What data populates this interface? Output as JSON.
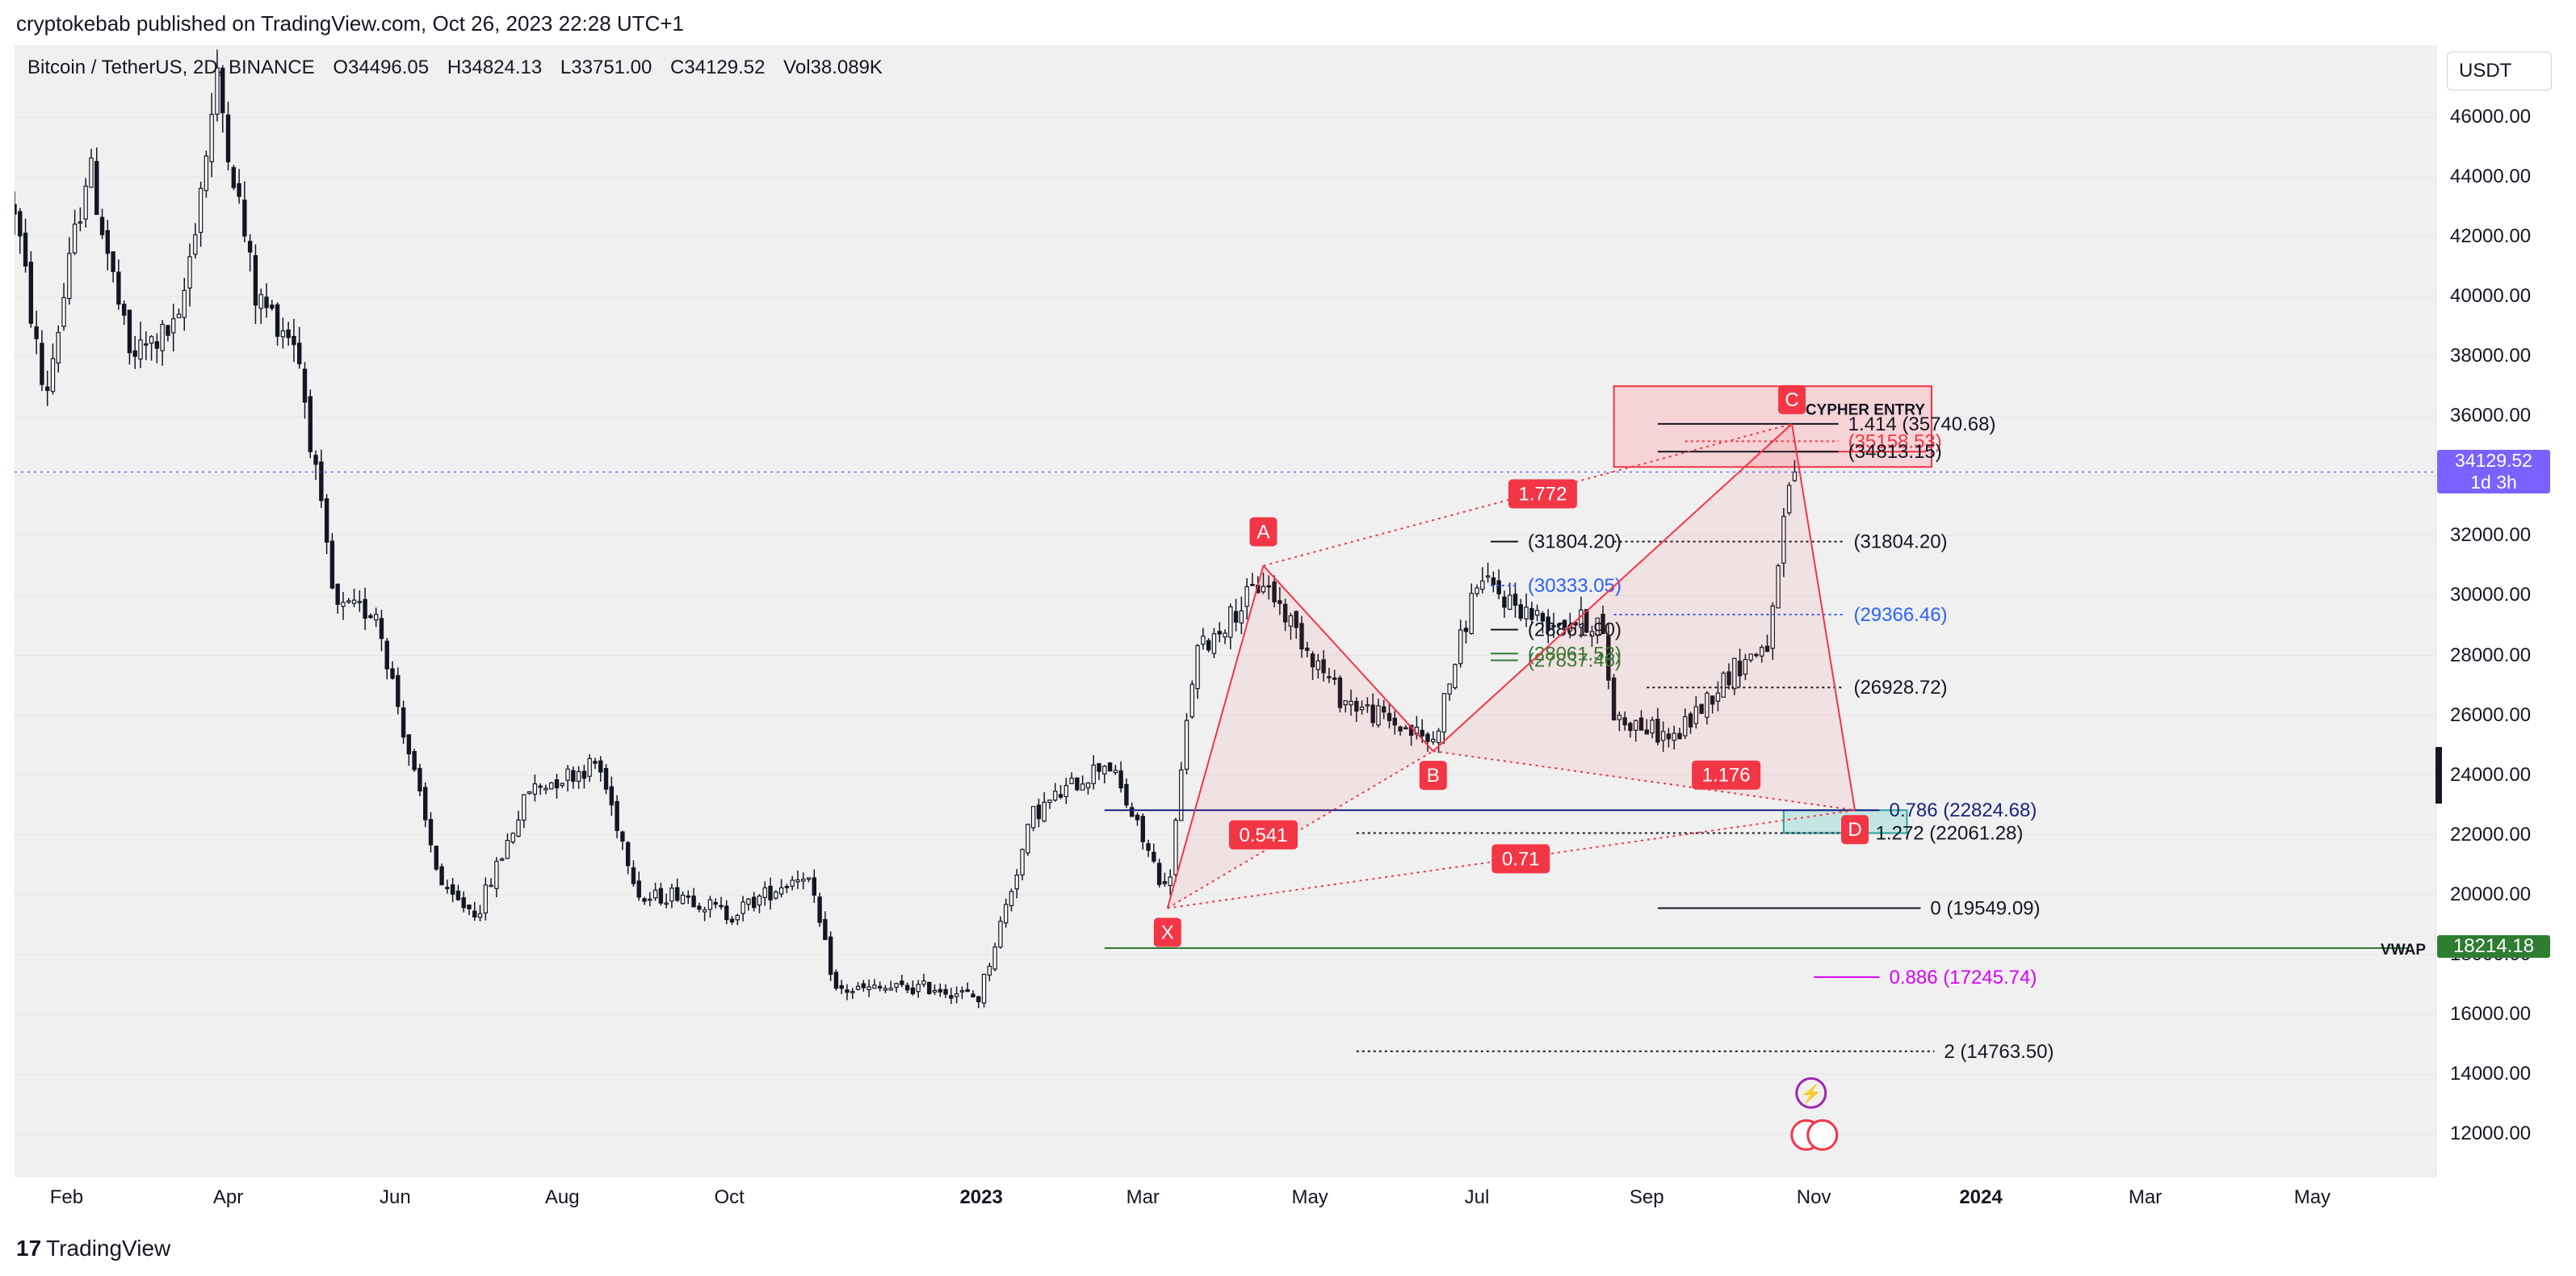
{
  "header": {
    "publisher": "cryptokebab published on TradingView.com, Oct 26, 2023 22:28 UTC+1"
  },
  "legend": {
    "symbol": "Bitcoin / TetherUS, 2D, BINANCE",
    "open": "O34496.05",
    "high": "H34824.13",
    "low": "L33751.00",
    "close": "C34129.52",
    "volume": "Vol38.089K"
  },
  "currency_button": "USDT",
  "price_badge": {
    "price": "34129.52",
    "countdown": "1d 3h"
  },
  "vwap_badge": {
    "label": "VWAP",
    "value": "18214.18"
  },
  "footer": {
    "brand": "TradingView"
  },
  "colors": {
    "pattern": "#f23645",
    "zone_fill": "#f7c9cd",
    "support": "#2e7d32",
    "fib_blue": "#2962ff",
    "fib_magenta": "#d500f9",
    "navy": "#1a237e",
    "badge": "#7b61ff"
  },
  "icons": [
    "tradingview-logo-icon",
    "lightning-event-icon",
    "us-flag-event-icon"
  ],
  "chart_data": {
    "type": "candlestick",
    "symbol": "Bitcoin / TetherUS",
    "interval": "2D",
    "exchange": "BINANCE",
    "currency": "USDT",
    "ylim": [
      10600,
      48400
    ],
    "y_ticks": [
      12000,
      14000,
      16000,
      18000,
      20000,
      22000,
      24000,
      26000,
      28000,
      30000,
      32000,
      34000,
      36000,
      38000,
      40000,
      42000,
      44000,
      46000
    ],
    "y_tick_labels": [
      "12000.00",
      "14000.00",
      "16000.00",
      "18000.00",
      "20000.00",
      "22000.00",
      "24000.00",
      "26000.00",
      "28000.00",
      "30000.00",
      "32000.00",
      "34000.00",
      "36000.00",
      "38000.00",
      "40000.00",
      "42000.00",
      "44000.00",
      "46000.00"
    ],
    "xlim": [
      "2022-01-13",
      "2024-06-15"
    ],
    "x_ticks": [
      {
        "date": "2022-02-01",
        "label": "Feb",
        "bold": false
      },
      {
        "date": "2022-04-01",
        "label": "Apr",
        "bold": false
      },
      {
        "date": "2022-06-01",
        "label": "Jun",
        "bold": false
      },
      {
        "date": "2022-08-01",
        "label": "Aug",
        "bold": false
      },
      {
        "date": "2022-10-01",
        "label": "Oct",
        "bold": false
      },
      {
        "date": "2023-01-01",
        "label": "2023",
        "bold": true
      },
      {
        "date": "2023-03-01",
        "label": "Mar",
        "bold": false
      },
      {
        "date": "2023-05-01",
        "label": "May",
        "bold": false
      },
      {
        "date": "2023-07-01",
        "label": "Jul",
        "bold": false
      },
      {
        "date": "2023-09-01",
        "label": "Sep",
        "bold": false
      },
      {
        "date": "2023-11-01",
        "label": "Nov",
        "bold": false
      },
      {
        "date": "2024-01-01",
        "label": "2024",
        "bold": true
      },
      {
        "date": "2024-03-01",
        "label": "Mar",
        "bold": false
      },
      {
        "date": "2024-05-01",
        "label": "May",
        "bold": false
      }
    ],
    "price_path": [
      [
        "2022-01-13",
        43000
      ],
      [
        "2022-01-24",
        36500
      ],
      [
        "2022-02-09",
        44500
      ],
      [
        "2022-02-24",
        38000
      ],
      [
        "2022-03-14",
        39000
      ],
      [
        "2022-03-28",
        47200
      ],
      [
        "2022-04-11",
        40000
      ],
      [
        "2022-04-26",
        38500
      ],
      [
        "2022-05-10",
        29500
      ],
      [
        "2022-05-25",
        29500
      ],
      [
        "2022-06-13",
        22000
      ],
      [
        "2022-06-19",
        20000
      ],
      [
        "2022-07-01",
        19400
      ],
      [
        "2022-07-20",
        23500
      ],
      [
        "2022-08-14",
        24400
      ],
      [
        "2022-08-30",
        19800
      ],
      [
        "2022-09-13",
        20100
      ],
      [
        "2022-10-01",
        19300
      ],
      [
        "2022-10-29",
        20800
      ],
      [
        "2022-11-09",
        16800
      ],
      [
        "2022-12-15",
        16900
      ],
      [
        "2022-12-31",
        16550
      ],
      [
        "2023-01-20",
        22700
      ],
      [
        "2023-02-16",
        24500
      ],
      [
        "2023-03-10",
        20000
      ],
      [
        "2023-03-20",
        28000
      ],
      [
        "2023-04-14",
        30500
      ],
      [
        "2023-05-12",
        26600
      ],
      [
        "2023-06-15",
        25100
      ],
      [
        "2023-07-01",
        30500
      ],
      [
        "2023-07-24",
        29200
      ],
      [
        "2023-08-15",
        29100
      ],
      [
        "2023-08-20",
        26000
      ],
      [
        "2023-09-11",
        25200
      ],
      [
        "2023-10-01",
        27400
      ],
      [
        "2023-10-16",
        28500
      ],
      [
        "2023-10-24",
        34500
      ],
      [
        "2023-10-26",
        34129.52
      ]
    ],
    "last_price": 34129.52,
    "vwap": 18214.18,
    "harmonic_pattern": {
      "name": "Cypher",
      "points": [
        {
          "label": "X",
          "date": "2023-03-10",
          "price": 19549.09
        },
        {
          "label": "A",
          "date": "2023-04-14",
          "price": 31000
        },
        {
          "label": "B",
          "date": "2023-06-15",
          "price": 24800
        },
        {
          "label": "C",
          "date": "2023-10-24",
          "price": 35740.68
        },
        {
          "label": "D",
          "date": "2023-11-16",
          "price": 22824.68
        }
      ],
      "ratios": [
        {
          "label": "0.541",
          "date": "2023-04-14",
          "price": 22000
        },
        {
          "label": "1.772",
          "date": "2023-07-25",
          "price": 33400
        },
        {
          "label": "1.176",
          "date": "2023-09-30",
          "price": 24000
        },
        {
          "label": "0.71",
          "date": "2023-07-17",
          "price": 21200
        }
      ]
    },
    "zones": [
      {
        "label": "CYPHER ENTRY",
        "date_from": "2023-08-20",
        "date_to": "2023-12-14",
        "price_from": 34300,
        "price_to": 37000
      }
    ],
    "levels": [
      {
        "label": "1.414 (35740.68)",
        "price": 35740.68,
        "date_from": "2023-09-05",
        "date_to": "2023-11-10",
        "style": "solid",
        "color": "#131722"
      },
      {
        "label": "(35158.53)",
        "price": 35158.53,
        "date_from": "2023-09-15",
        "date_to": "2023-11-10",
        "style": "dotted",
        "color": "#f23645"
      },
      {
        "label": "(34813.15)",
        "price": 34813.15,
        "date_from": "2023-10-24",
        "date_to": "2023-12-12",
        "style": "solid",
        "color": "#f23645"
      },
      {
        "label": "(34813.15)",
        "price": 34813.15,
        "date_from": "2023-09-05",
        "date_to": "2023-11-10",
        "style": "solid",
        "color": "#131722"
      },
      {
        "label": "(31804.20)",
        "price": 31804.2,
        "date_from": "2023-07-06",
        "date_to": "2023-07-16",
        "style": "solid",
        "color": "#131722"
      },
      {
        "label": "(31804.20)",
        "price": 31804.2,
        "date_from": "2023-08-20",
        "date_to": "2023-11-12",
        "style": "dotted",
        "color": "#131722"
      },
      {
        "label": "(30333.05)",
        "price": 30333.05,
        "date_from": "2023-07-06",
        "date_to": "2023-07-16",
        "style": "dotted",
        "color": "#2962ff"
      },
      {
        "label": "(29366.46)",
        "price": 29366.46,
        "date_from": "2023-08-20",
        "date_to": "2023-11-12",
        "style": "dotted",
        "color": "#2962ff"
      },
      {
        "label": "(28861.90)",
        "price": 28861.9,
        "date_from": "2023-07-06",
        "date_to": "2023-07-16",
        "style": "solid",
        "color": "#131722"
      },
      {
        "label": "(28061.53)",
        "price": 28061.53,
        "date_from": "2023-07-06",
        "date_to": "2023-07-16",
        "style": "solid",
        "color": "#2e7d32"
      },
      {
        "label": "(27837.46)",
        "price": 27837.46,
        "date_from": "2023-07-06",
        "date_to": "2023-07-16",
        "style": "solid",
        "color": "#2e7d32"
      },
      {
        "label": "(26928.72)",
        "price": 26928.72,
        "date_from": "2023-09-01",
        "date_to": "2023-11-12",
        "style": "dotted",
        "color": "#131722"
      },
      {
        "label": "0.786 (22824.68)",
        "price": 22824.68,
        "date_from": "2023-02-15",
        "date_to": "2023-11-25",
        "style": "solid",
        "color": "#1a237e"
      },
      {
        "label": "1.272 (22061.28)",
        "price": 22061.28,
        "date_from": "2023-05-18",
        "date_to": "2023-11-20",
        "style": "dotted",
        "color": "#131722"
      },
      {
        "label": "0 (19549.09)",
        "price": 19549.09,
        "date_from": "2023-09-05",
        "date_to": "2023-12-10",
        "style": "solid",
        "color": "#131722"
      },
      {
        "label": "VWAP",
        "price": 18214.18,
        "date_from": "2023-02-15",
        "date_to": "2024-06-05",
        "style": "solid",
        "color": "#2e7d32"
      },
      {
        "label": "0.886 (17245.74)",
        "price": 17245.74,
        "date_from": "2023-11-01",
        "date_to": "2023-11-25",
        "style": "solid",
        "color": "#d500f9"
      },
      {
        "label": "2 (14763.50)",
        "price": 14763.5,
        "date_from": "2023-05-18",
        "date_to": "2023-12-15",
        "style": "dotted",
        "color": "#131722"
      }
    ]
  }
}
